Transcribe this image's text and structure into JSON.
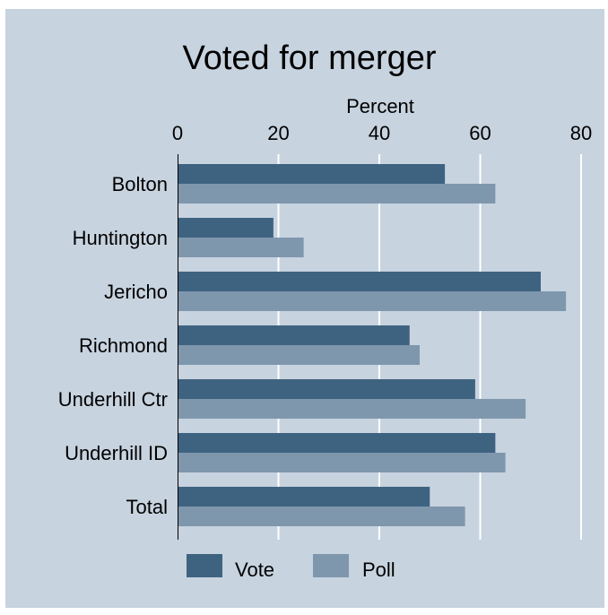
{
  "chart_data": {
    "type": "bar",
    "orientation": "horizontal",
    "title": "Voted for merger",
    "xlabel": "Percent",
    "xlim": [
      0,
      80
    ],
    "xticks": [
      "0",
      "20",
      "40",
      "60",
      "80"
    ],
    "categories": [
      "Bolton",
      "Huntington",
      "Jericho",
      "Richmond",
      "Underhill Ctr",
      "Underhill ID",
      "Total"
    ],
    "series": [
      {
        "name": "Vote",
        "color": "#3e6380",
        "values": [
          53,
          19,
          72,
          46,
          59,
          63,
          50
        ]
      },
      {
        "name": "Poll",
        "color": "#7f97ad",
        "values": [
          63,
          25,
          77,
          48,
          69,
          65,
          57
        ]
      }
    ],
    "grid": true,
    "legend": "bottom"
  }
}
